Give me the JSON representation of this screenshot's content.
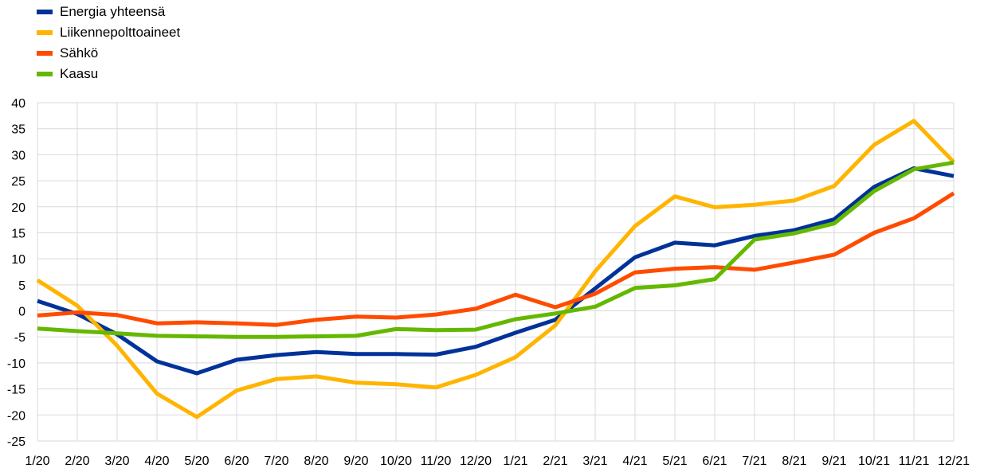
{
  "chart_data": {
    "type": "line",
    "title": "",
    "xlabel": "",
    "ylabel": "",
    "categories": [
      "1/20",
      "2/20",
      "3/20",
      "4/20",
      "5/20",
      "6/20",
      "7/20",
      "8/20",
      "9/20",
      "10/20",
      "11/20",
      "12/20",
      "1/21",
      "2/21",
      "3/21",
      "4/21",
      "5/21",
      "6/21",
      "7/21",
      "8/21",
      "9/21",
      "10/21",
      "11/21",
      "12/21"
    ],
    "ylim": [
      -25,
      40
    ],
    "yticks": [
      "-25",
      "-20",
      "-15",
      "-10",
      "-5",
      "0",
      "5",
      "10",
      "15",
      "20",
      "25",
      "30",
      "35",
      "40"
    ],
    "grid": true,
    "legend_position": "top-left",
    "series": [
      {
        "name": "Energia yhteensä",
        "color": "#003299",
        "values": [
          1.9,
          -0.6,
          -4.5,
          -9.7,
          -12.0,
          -9.4,
          -8.5,
          -7.9,
          -8.3,
          -8.3,
          -8.4,
          -6.9,
          -4.2,
          -1.7,
          4.3,
          10.3,
          13.1,
          12.6,
          14.4,
          15.5,
          17.6,
          23.8,
          27.4,
          25.9
        ]
      },
      {
        "name": "Liikennepolttoaineet",
        "color": "#FFB400",
        "values": [
          5.9,
          1.0,
          -6.7,
          -15.9,
          -20.4,
          -15.3,
          -13.1,
          -12.6,
          -13.8,
          -14.1,
          -14.7,
          -12.3,
          -8.9,
          -2.8,
          7.6,
          16.3,
          22.0,
          19.9,
          20.4,
          21.2,
          24.0,
          31.9,
          36.5,
          28.6
        ]
      },
      {
        "name": "Sähkö",
        "color": "#FF4B00",
        "values": [
          -0.9,
          -0.3,
          -0.8,
          -2.4,
          -2.2,
          -2.4,
          -2.7,
          -1.7,
          -1.1,
          -1.3,
          -0.7,
          0.4,
          3.1,
          0.7,
          3.3,
          7.4,
          8.1,
          8.4,
          7.9,
          9.3,
          10.8,
          15.0,
          17.8,
          22.6
        ]
      },
      {
        "name": "Kaasu",
        "color": "#65B800",
        "values": [
          -3.4,
          -3.9,
          -4.3,
          -4.8,
          -4.9,
          -5.0,
          -5.0,
          -4.9,
          -4.8,
          -3.5,
          -3.7,
          -3.6,
          -1.6,
          -0.5,
          0.8,
          4.4,
          4.9,
          6.1,
          13.7,
          14.9,
          16.8,
          23.0,
          27.2,
          28.5
        ]
      }
    ]
  }
}
